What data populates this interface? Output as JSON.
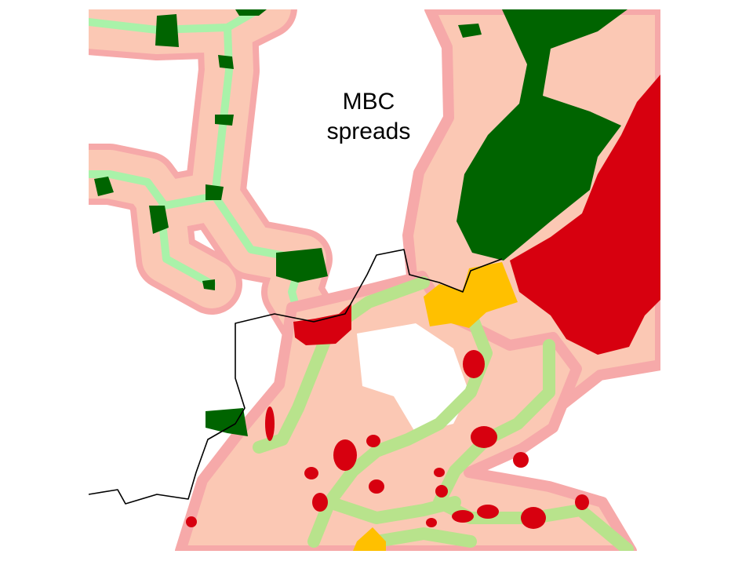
{
  "annotation": {
    "lines": [
      "MBC",
      "spreads"
    ]
  }
}
